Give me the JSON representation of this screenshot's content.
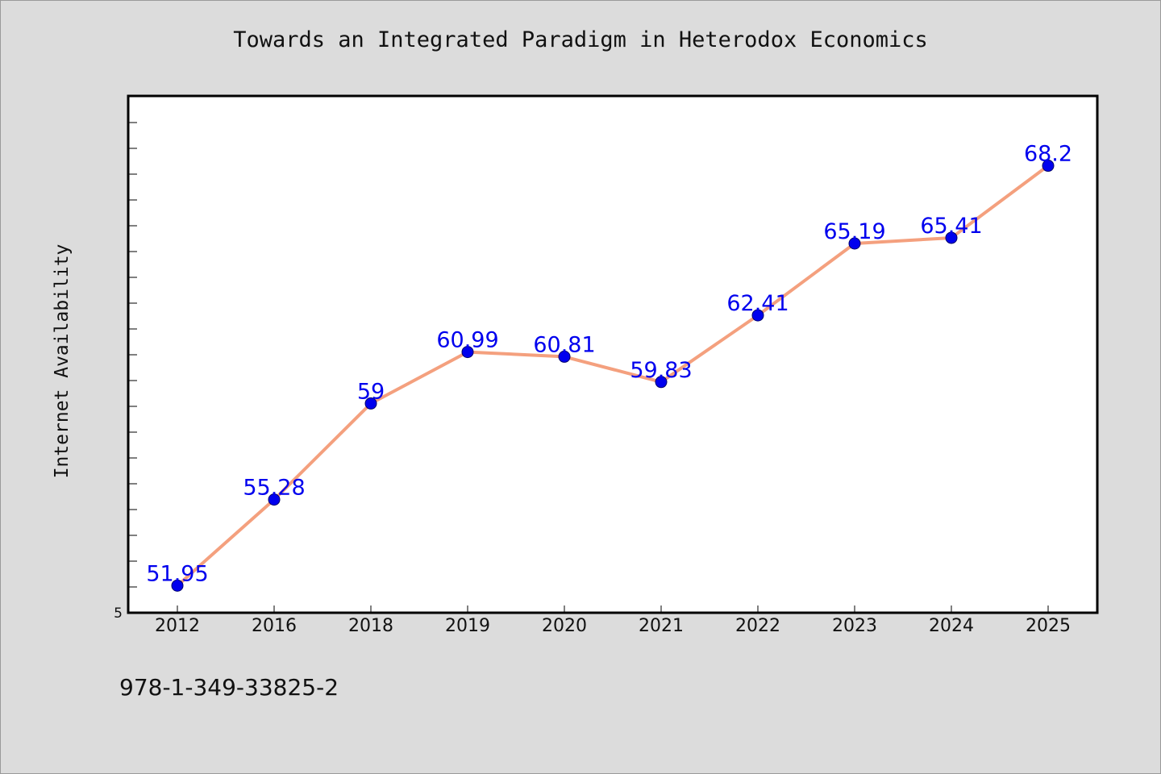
{
  "chart_data": {
    "type": "line",
    "title": "Towards an Integrated Paradigm in Heterodox Economics",
    "xlabel": "",
    "ylabel": "Internet Availability",
    "categories": [
      "2012",
      "2016",
      "2018",
      "2019",
      "2020",
      "2021",
      "2022",
      "2023",
      "2024",
      "2025"
    ],
    "series": [
      {
        "values": [
          51.95,
          55.28,
          59,
          60.99,
          60.81,
          59.83,
          62.41,
          65.19,
          65.41,
          68.2
        ]
      }
    ],
    "data_labels": [
      "51.95",
      "55.28",
      "59",
      "60.99",
      "60.81",
      "59.83",
      "62.41",
      "65.19",
      "65.41",
      "68.2"
    ],
    "y_tick_label": "5",
    "ylim": [
      50.9,
      70.9
    ],
    "grid": false,
    "line_color": "#f4a07e",
    "marker_color": "#0000ee",
    "label_color": "#0000ee"
  },
  "footer": {
    "isbn": "978-1-349-33825-2"
  }
}
